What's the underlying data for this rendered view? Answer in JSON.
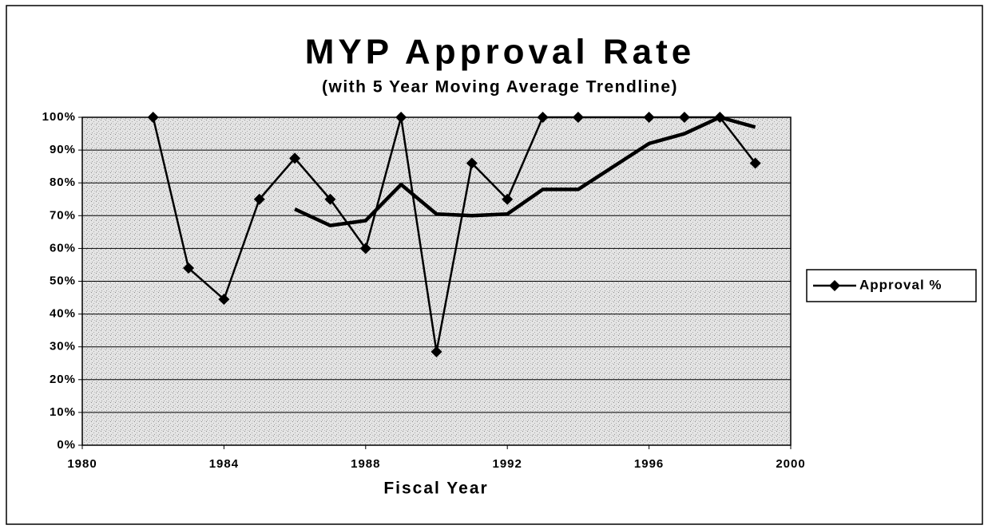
{
  "chart_data": {
    "type": "line",
    "title": "MYP Approval Rate",
    "subtitle": "(with 5 Year Moving Average Trendline)",
    "x_label": "Fiscal Year",
    "xlim": [
      1980,
      2000
    ],
    "xticks": [
      1980,
      1984,
      1988,
      1992,
      1996,
      2000
    ],
    "ylim": [
      0,
      100
    ],
    "yticks": [
      {
        "value": 0,
        "label": "0%"
      },
      {
        "value": 10,
        "label": "10%"
      },
      {
        "value": 20,
        "label": "20%"
      },
      {
        "value": 30,
        "label": "30%"
      },
      {
        "value": 40,
        "label": "40%"
      },
      {
        "value": 50,
        "label": "50%"
      },
      {
        "value": 60,
        "label": "60%"
      },
      {
        "value": 70,
        "label": "70%"
      },
      {
        "value": 80,
        "label": "80%"
      },
      {
        "value": 90,
        "label": "90%"
      },
      {
        "value": 100,
        "label": "100%"
      }
    ],
    "grid": true,
    "legend": "right",
    "series": [
      {
        "name": "Approval %",
        "color": "#000000",
        "marker": "diamond",
        "x": [
          1982,
          1983,
          1984,
          1985,
          1986,
          1987,
          1988,
          1989,
          1990,
          1991,
          1992,
          1993,
          1994,
          1996,
          1997,
          1998,
          1999
        ],
        "values": [
          100,
          54,
          44.5,
          75,
          87.5,
          75,
          60,
          100,
          28.5,
          86,
          75,
          100,
          100,
          100,
          100,
          100,
          86
        ]
      },
      {
        "color": "#000000",
        "x": [
          1986,
          1987,
          1988,
          1989,
          1990,
          1991,
          1992,
          1993,
          1994,
          1995,
          1996,
          1997,
          1998,
          1999
        ],
        "values": [
          72,
          67,
          68.5,
          79.5,
          70.5,
          70,
          70.5,
          78,
          78,
          85,
          92,
          95,
          100,
          97
        ]
      }
    ]
  }
}
